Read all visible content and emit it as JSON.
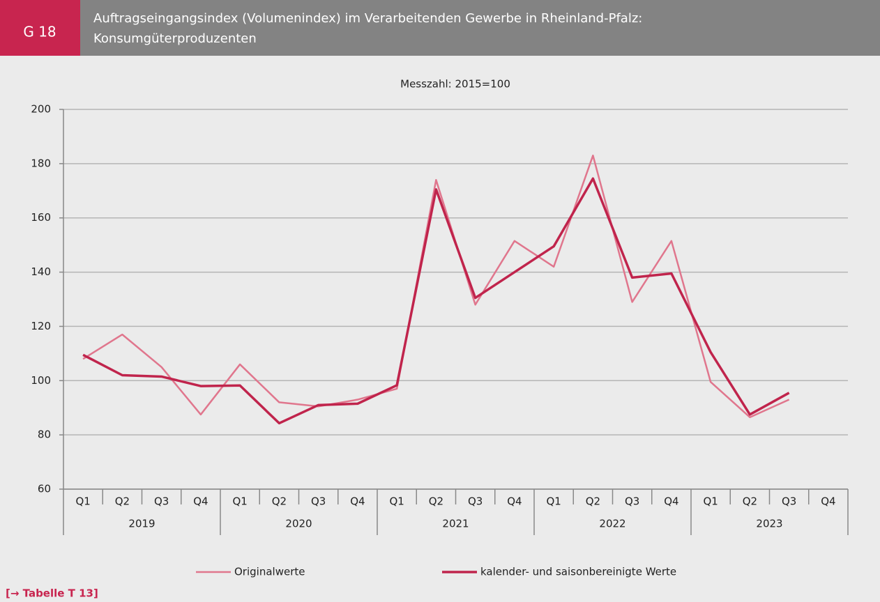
{
  "chart_data": {
    "type": "line",
    "code": "G 18",
    "title": "Auftragseingangsindex (Volumenindex) im  Verarbeitenden Gewerbe in Rheinland-Pfalz:",
    "title2": "Konsumgüterproduzenten",
    "subtitle": "Messzahl: 2015=100",
    "categories": [
      "Q1",
      "Q2",
      "Q3",
      "Q4",
      "Q1",
      "Q2",
      "Q3",
      "Q4",
      "Q1",
      "Q2",
      "Q3",
      "Q4",
      "Q1",
      "Q2",
      "Q3",
      "Q4",
      "Q1",
      "Q2",
      "Q3",
      "Q4"
    ],
    "years": [
      "2019",
      "2020",
      "2021",
      "2022",
      "2023"
    ],
    "series": [
      {
        "name": "Originalwerte",
        "color": "#e0768d",
        "values": [
          108,
          117,
          105,
          87.5,
          106,
          92,
          90.5,
          93,
          97,
          174,
          128,
          151.5,
          142,
          183,
          129,
          151.5,
          99.5,
          86.5,
          93,
          null
        ]
      },
      {
        "name": "kalender- und saisonbereinigte Werte",
        "color": "#c0244c",
        "values": [
          109.5,
          102,
          101.5,
          98,
          98.2,
          84.3,
          91,
          91.5,
          98.3,
          170.5,
          130.5,
          140,
          149.5,
          174.5,
          138,
          139.5,
          110.5,
          87.5,
          95.5,
          null
        ]
      }
    ],
    "ylim": [
      60,
      200
    ],
    "yticks": [
      60,
      80,
      100,
      120,
      140,
      160,
      180,
      200
    ],
    "grid": true,
    "link": "[→ Tabelle T 13]"
  }
}
